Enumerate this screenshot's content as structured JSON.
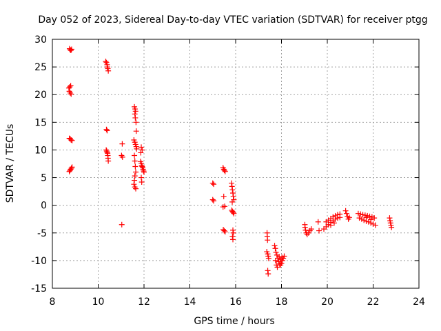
{
  "chart_data": {
    "type": "scatter",
    "title": "Day 052 of 2023, Sidereal Day-to-day VTEC variation (SDTVAR) for receiver ptgg",
    "xlabel": "GPS time / hours",
    "ylabel": "SDTVAR / TECUs",
    "xlim": [
      8,
      24
    ],
    "ylim": [
      -15,
      30
    ],
    "xticks": [
      8,
      10,
      12,
      14,
      16,
      18,
      20,
      22,
      24
    ],
    "yticks": [
      -15,
      -10,
      -5,
      0,
      5,
      10,
      15,
      20,
      25,
      30
    ],
    "xtick_labels": [
      "8",
      "10",
      "12",
      "14",
      "16",
      "18",
      "20",
      "22",
      "24"
    ],
    "ytick_labels": [
      "-15",
      "-10",
      "-5",
      "0",
      "5",
      "10",
      "15",
      "20",
      "25",
      "30"
    ],
    "grid": true,
    "marker": "+",
    "series": [
      {
        "name": "SDTVAR",
        "color": "#ff0000",
        "points": [
          [
            8.75,
            28.3
          ],
          [
            8.78,
            28.1
          ],
          [
            8.81,
            28.0
          ],
          [
            8.84,
            28.2
          ],
          [
            8.72,
            21.2
          ],
          [
            8.76,
            21.4
          ],
          [
            8.8,
            21.6
          ],
          [
            8.74,
            20.6
          ],
          [
            8.78,
            20.3
          ],
          [
            8.82,
            20.1
          ],
          [
            8.74,
            12.1
          ],
          [
            8.78,
            12.0
          ],
          [
            8.82,
            11.8
          ],
          [
            8.86,
            11.7
          ],
          [
            8.74,
            6.1
          ],
          [
            8.77,
            6.3
          ],
          [
            8.8,
            6.5
          ],
          [
            8.83,
            6.7
          ],
          [
            8.86,
            6.9
          ],
          [
            10.33,
            26.0
          ],
          [
            10.36,
            25.8
          ],
          [
            10.39,
            25.4
          ],
          [
            10.4,
            25.0
          ],
          [
            10.42,
            24.7
          ],
          [
            10.44,
            24.3
          ],
          [
            10.36,
            13.7
          ],
          [
            10.39,
            13.5
          ],
          [
            10.35,
            10.0
          ],
          [
            10.37,
            9.8
          ],
          [
            10.39,
            9.6
          ],
          [
            10.41,
            9.4
          ],
          [
            10.42,
            9.0
          ],
          [
            10.43,
            8.5
          ],
          [
            10.44,
            8.0
          ],
          [
            11.05,
            11.1
          ],
          [
            11.02,
            9.0
          ],
          [
            11.06,
            8.7
          ],
          [
            11.03,
            -3.5
          ],
          [
            11.58,
            17.8
          ],
          [
            11.61,
            17.4
          ],
          [
            11.63,
            17.0
          ],
          [
            11.6,
            16.5
          ],
          [
            11.62,
            15.8
          ],
          [
            11.65,
            15.0
          ],
          [
            11.66,
            13.4
          ],
          [
            11.56,
            11.8
          ],
          [
            11.6,
            11.4
          ],
          [
            11.63,
            11.0
          ],
          [
            11.66,
            10.6
          ],
          [
            11.68,
            10.2
          ],
          [
            11.58,
            9.0
          ],
          [
            11.6,
            8.0
          ],
          [
            11.62,
            7.0
          ],
          [
            11.64,
            6.0
          ],
          [
            11.6,
            5.3
          ],
          [
            11.58,
            4.5
          ],
          [
            11.56,
            3.8
          ],
          [
            11.6,
            3.3
          ],
          [
            11.64,
            3.0
          ],
          [
            11.88,
            10.5
          ],
          [
            11.92,
            10.0
          ],
          [
            11.86,
            9.5
          ],
          [
            11.85,
            7.9
          ],
          [
            11.88,
            7.6
          ],
          [
            11.9,
            7.2
          ],
          [
            11.92,
            7.0
          ],
          [
            11.94,
            6.8
          ],
          [
            11.96,
            6.5
          ],
          [
            11.98,
            6.2
          ],
          [
            12.0,
            6.0
          ],
          [
            11.88,
            5.0
          ],
          [
            11.9,
            4.2
          ],
          [
            15.0,
            4.0
          ],
          [
            15.04,
            3.8
          ],
          [
            15.0,
            1.0
          ],
          [
            15.04,
            0.8
          ],
          [
            15.45,
            6.8
          ],
          [
            15.48,
            6.5
          ],
          [
            15.51,
            6.3
          ],
          [
            15.54,
            6.1
          ],
          [
            15.48,
            1.6
          ],
          [
            15.52,
            -0.2
          ],
          [
            15.45,
            -0.3
          ],
          [
            15.46,
            -4.4
          ],
          [
            15.5,
            -4.6
          ],
          [
            15.54,
            -4.8
          ],
          [
            15.82,
            4.0
          ],
          [
            15.84,
            3.4
          ],
          [
            15.86,
            2.8
          ],
          [
            15.88,
            2.2
          ],
          [
            15.9,
            1.6
          ],
          [
            15.92,
            1.0
          ],
          [
            15.85,
            0.6
          ],
          [
            15.83,
            -0.9
          ],
          [
            15.86,
            -1.1
          ],
          [
            15.89,
            -1.3
          ],
          [
            15.92,
            -1.5
          ],
          [
            15.88,
            -4.5
          ],
          [
            15.9,
            -5.0
          ],
          [
            15.86,
            -5.6
          ],
          [
            15.88,
            -6.2
          ],
          [
            17.37,
            -5.0
          ],
          [
            17.38,
            -5.6
          ],
          [
            17.39,
            -6.3
          ],
          [
            17.36,
            -8.4
          ],
          [
            17.4,
            -8.8
          ],
          [
            17.42,
            -9.2
          ],
          [
            17.44,
            -9.6
          ],
          [
            17.4,
            -11.8
          ],
          [
            17.42,
            -12.4
          ],
          [
            17.7,
            -7.3
          ],
          [
            17.73,
            -7.8
          ],
          [
            17.76,
            -8.5
          ],
          [
            17.8,
            -9.0
          ],
          [
            17.84,
            -9.6
          ],
          [
            17.88,
            -10.2
          ],
          [
            17.92,
            -10.6
          ],
          [
            17.96,
            -10.8
          ],
          [
            18.0,
            -10.5
          ],
          [
            18.04,
            -10.0
          ],
          [
            18.08,
            -9.6
          ],
          [
            18.12,
            -9.2
          ],
          [
            17.74,
            -10.0
          ],
          [
            17.78,
            -10.8
          ],
          [
            17.82,
            -11.2
          ],
          [
            17.9,
            -9.3
          ],
          [
            17.95,
            -9.8
          ],
          [
            18.02,
            -9.4
          ],
          [
            19.02,
            -3.5
          ],
          [
            19.03,
            -4.0
          ],
          [
            19.05,
            -4.5
          ],
          [
            19.08,
            -5.0
          ],
          [
            19.12,
            -5.3
          ],
          [
            19.18,
            -5.0
          ],
          [
            19.24,
            -4.6
          ],
          [
            19.3,
            -4.3
          ],
          [
            19.6,
            -3.0
          ],
          [
            19.64,
            -4.6
          ],
          [
            19.85,
            -4.3
          ],
          [
            19.95,
            -3.9
          ],
          [
            20.05,
            -3.5
          ],
          [
            20.15,
            -3.1
          ],
          [
            20.25,
            -2.8
          ],
          [
            20.35,
            -2.5
          ],
          [
            20.45,
            -2.3
          ],
          [
            20.55,
            -2.2
          ],
          [
            19.95,
            -3.0
          ],
          [
            20.05,
            -2.7
          ],
          [
            20.15,
            -2.4
          ],
          [
            20.25,
            -2.1
          ],
          [
            20.35,
            -1.9
          ],
          [
            20.45,
            -1.7
          ],
          [
            20.55,
            -1.6
          ],
          [
            20.15,
            -3.6
          ],
          [
            20.3,
            -3.2
          ],
          [
            20.8,
            -1.0
          ],
          [
            20.84,
            -1.5
          ],
          [
            20.88,
            -2.0
          ],
          [
            20.92,
            -2.5
          ],
          [
            20.96,
            -2.2
          ],
          [
            21.35,
            -1.5
          ],
          [
            21.45,
            -1.6
          ],
          [
            21.55,
            -1.7
          ],
          [
            21.65,
            -1.8
          ],
          [
            21.75,
            -1.9
          ],
          [
            21.85,
            -2.0
          ],
          [
            21.95,
            -2.1
          ],
          [
            22.05,
            -2.3
          ],
          [
            21.4,
            -2.3
          ],
          [
            21.5,
            -2.5
          ],
          [
            21.6,
            -2.7
          ],
          [
            21.7,
            -2.9
          ],
          [
            21.8,
            -3.0
          ],
          [
            21.9,
            -3.2
          ],
          [
            22.0,
            -3.4
          ],
          [
            22.1,
            -3.6
          ],
          [
            21.7,
            -2.2
          ],
          [
            21.9,
            -2.6
          ],
          [
            22.72,
            -2.3
          ],
          [
            22.74,
            -2.8
          ],
          [
            22.76,
            -3.2
          ],
          [
            22.78,
            -3.6
          ],
          [
            22.8,
            -4.0
          ]
        ]
      }
    ]
  }
}
